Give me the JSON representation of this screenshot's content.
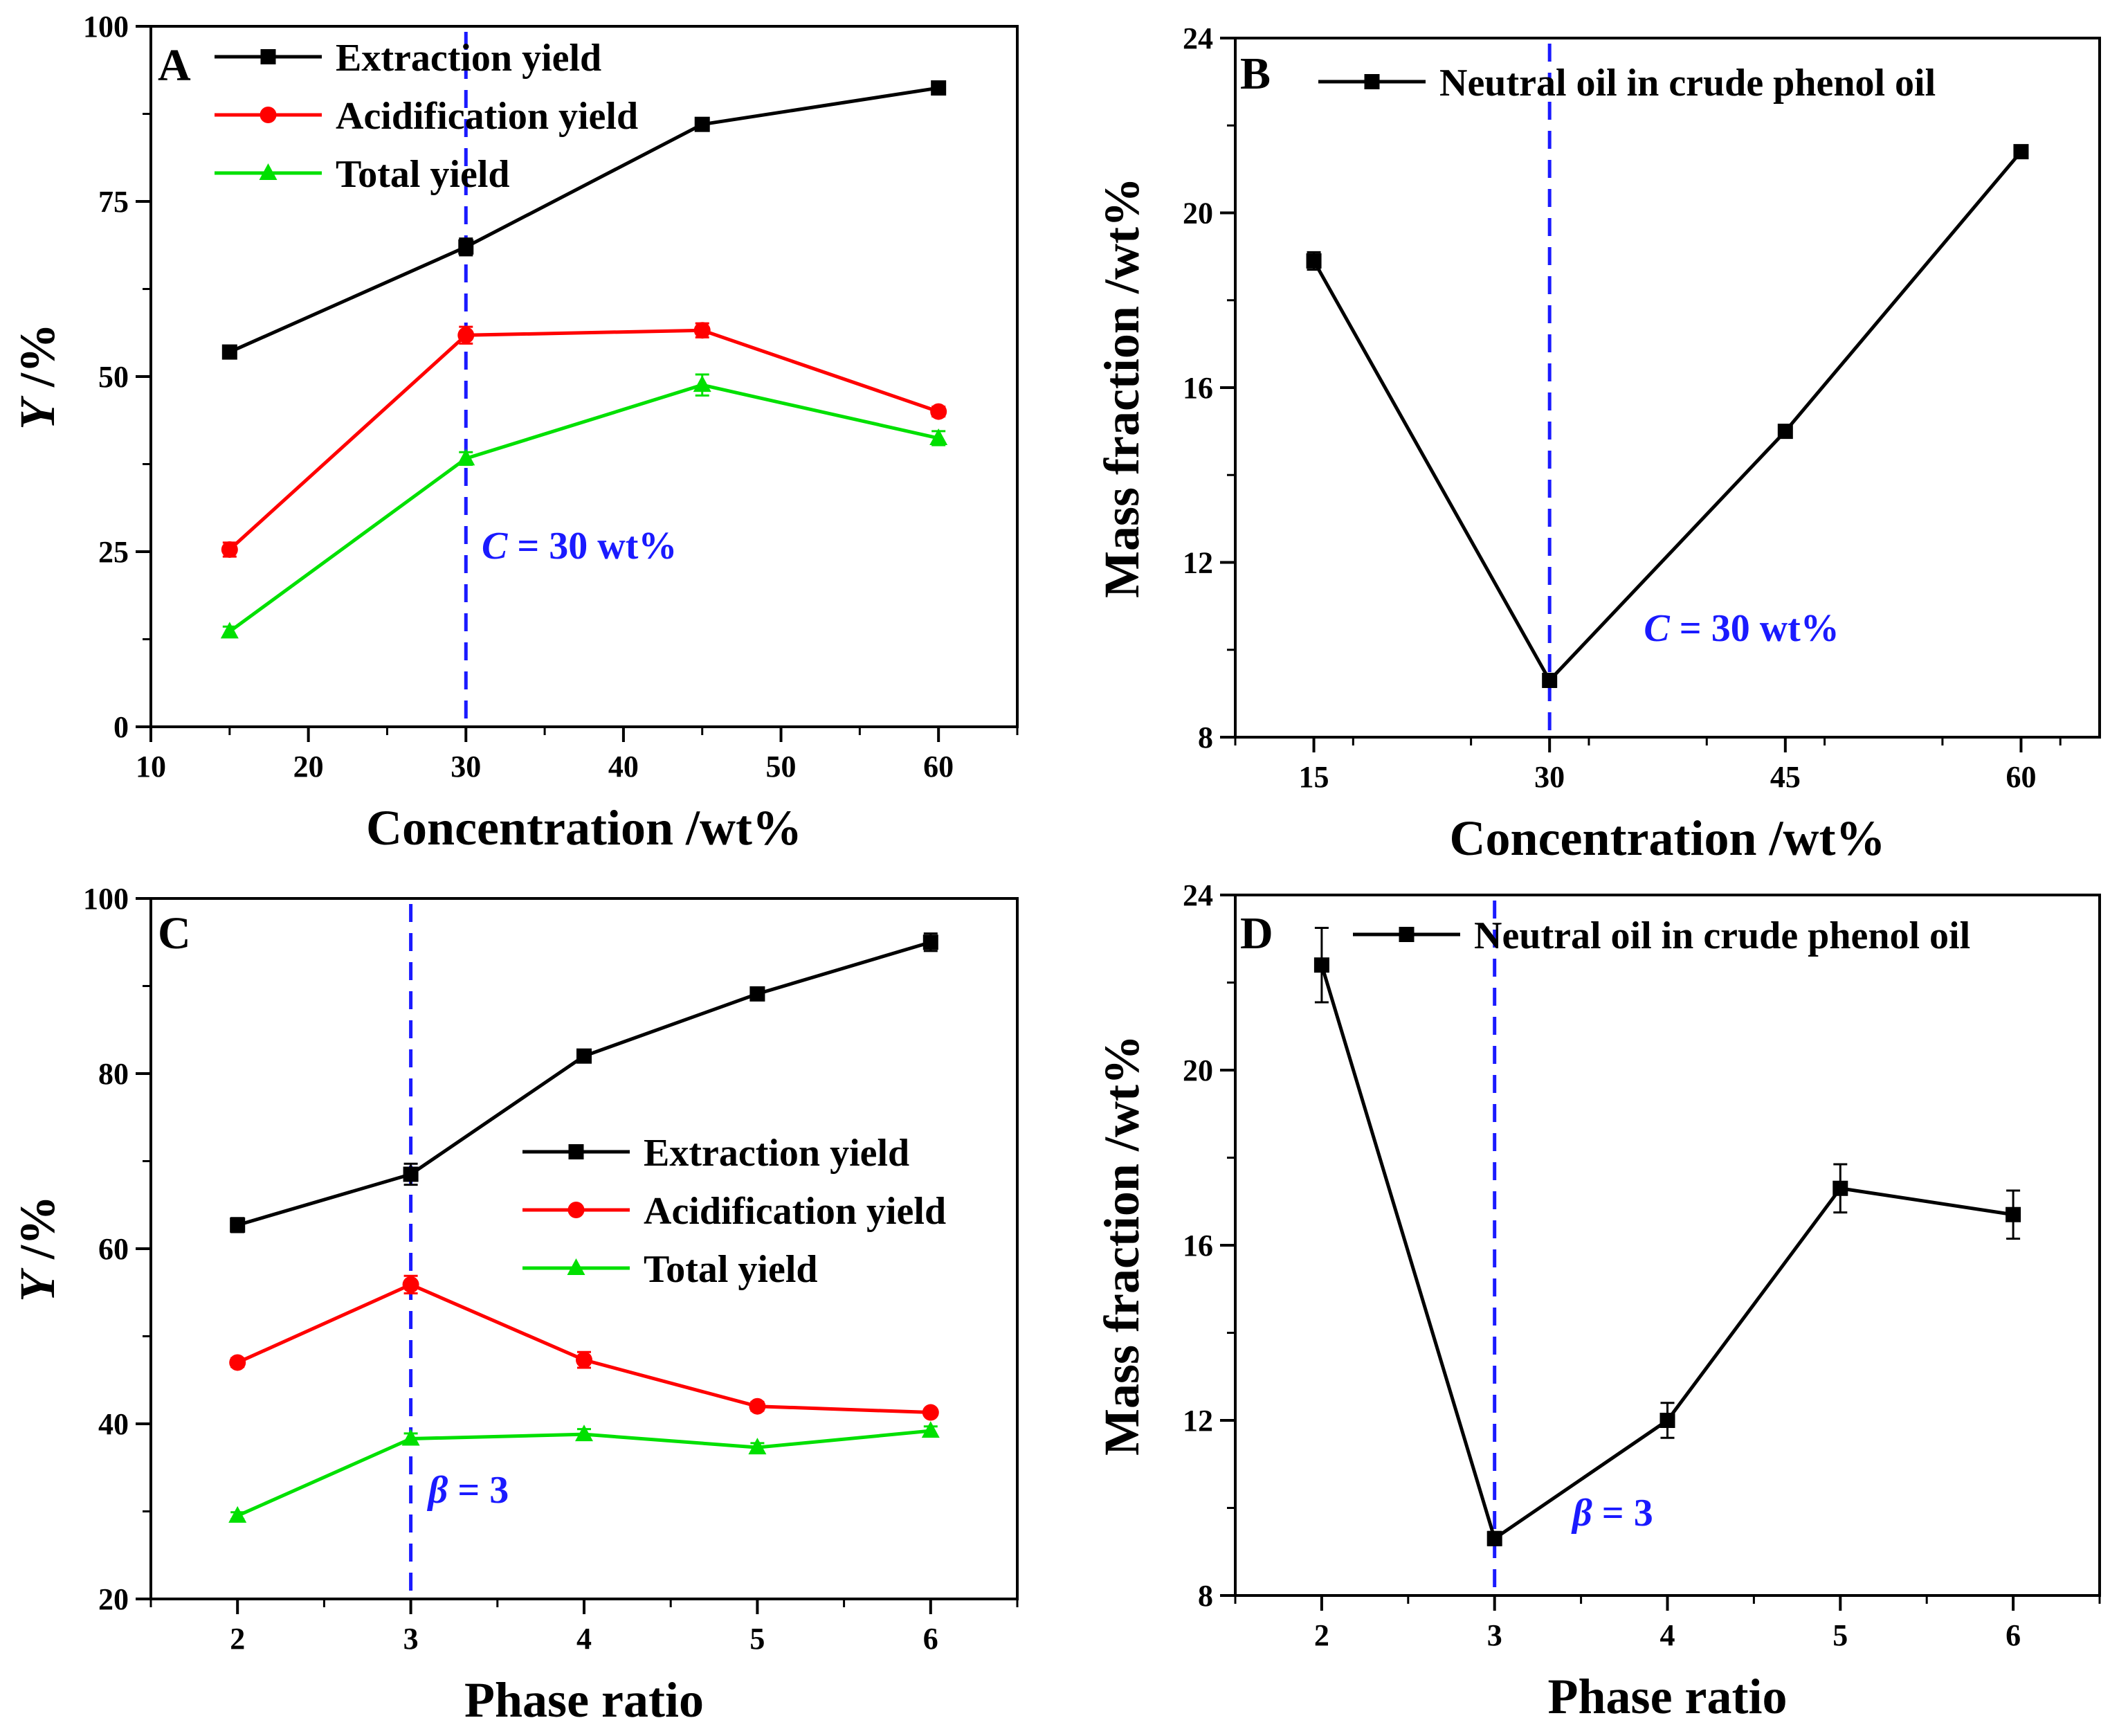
{
  "colors": {
    "extraction": "#000000",
    "acidification": "#ff0000",
    "total": "#00e000",
    "neutral": "#000000",
    "guide": "#1a1aff"
  },
  "chart_data": [
    {
      "panel": "A",
      "type": "line",
      "x": [
        15,
        30,
        45,
        60
      ],
      "xlim": [
        10,
        65
      ],
      "ylim": [
        0,
        100
      ],
      "xticks": [
        "10",
        "20",
        "30",
        "40",
        "50",
        "60"
      ],
      "yticks": [
        "0",
        "25",
        "50",
        "75",
        "100"
      ],
      "xlabel": "Concentration /wt%",
      "ylabel": "Y /%",
      "legend_position": "top-left",
      "series": [
        {
          "name": "Extraction yield",
          "values": [
            53.5,
            68.5,
            86,
            91.2
          ],
          "errors": [
            0.5,
            1.2,
            0.6,
            0.6
          ],
          "color": "#000000",
          "marker": "square"
        },
        {
          "name": "Acidification yield",
          "values": [
            25.3,
            55.9,
            56.6,
            45
          ],
          "errors": [
            1.0,
            1.2,
            1.0,
            0.7
          ],
          "color": "#ff0000",
          "marker": "circle"
        },
        {
          "name": "Total yield",
          "values": [
            13.6,
            38.3,
            48.8,
            41.2
          ],
          "errors": [
            0.7,
            0.9,
            1.5,
            1.0
          ],
          "color": "#00e000",
          "marker": "triangle"
        }
      ],
      "guide_line_x": 30,
      "annotation": {
        "italic": "C",
        "rest": " = 30 wt%",
        "x": 31,
        "y": 24
      }
    },
    {
      "panel": "B",
      "type": "line",
      "x": [
        15,
        30,
        45,
        60
      ],
      "xlim": [
        10,
        65
      ],
      "ylim": [
        8,
        24
      ],
      "xticks": [
        "15",
        "30",
        "45",
        "60"
      ],
      "yticks": [
        "8",
        "12",
        "16",
        "20",
        "24"
      ],
      "xlabel": "Concentration /wt%",
      "ylabel": "Mass fraction /wt%",
      "legend_position": "top",
      "series": [
        {
          "name": "Neutral oil in crude phenol oil",
          "values": [
            18.9,
            9.3,
            15.0,
            21.4
          ],
          "errors": [
            0.2,
            0.15,
            0.1,
            0.1
          ],
          "color": "#000000",
          "marker": "square"
        }
      ],
      "guide_line_x": 30,
      "annotation": {
        "italic": "C",
        "rest": " = 30 wt%",
        "x": 36,
        "y": 10.2
      }
    },
    {
      "panel": "C",
      "type": "line",
      "x": [
        2,
        3,
        4,
        5,
        6
      ],
      "xlim": [
        1.5,
        6.5
      ],
      "ylim": [
        20,
        100
      ],
      "xticks": [
        "2",
        "3",
        "4",
        "5",
        "6"
      ],
      "yticks": [
        "20",
        "40",
        "60",
        "80",
        "100"
      ],
      "xlabel": "Phase ratio",
      "ylabel": "Y /%",
      "legend_position": "center-right",
      "series": [
        {
          "name": "Extraction yield",
          "values": [
            62.7,
            68.5,
            82,
            89.1,
            95
          ],
          "errors": [
            0.8,
            1.2,
            0.5,
            0.7,
            1.0
          ],
          "color": "#000000",
          "marker": "square"
        },
        {
          "name": "Acidification yield",
          "values": [
            47,
            55.9,
            47.3,
            42,
            41.3
          ],
          "errors": [
            0.5,
            1.0,
            0.9,
            0.5,
            0.4
          ],
          "color": "#ff0000",
          "marker": "circle"
        },
        {
          "name": "Total yield",
          "values": [
            29.5,
            38.3,
            38.8,
            37.3,
            39.2
          ],
          "errors": [
            0.4,
            0.6,
            0.6,
            0.5,
            0.5
          ],
          "color": "#00e000",
          "marker": "triangle"
        }
      ],
      "guide_line_x": 3,
      "annotation": {
        "italic": "β",
        "rest": " = 3",
        "x": 3.1,
        "y": 31
      }
    },
    {
      "panel": "D",
      "type": "line",
      "x": [
        2,
        3,
        4,
        5,
        6
      ],
      "xlim": [
        1.5,
        6.5
      ],
      "ylim": [
        8,
        24
      ],
      "xticks": [
        "2",
        "3",
        "4",
        "5",
        "6"
      ],
      "yticks": [
        "8",
        "12",
        "16",
        "20",
        "24"
      ],
      "xlabel": "Phase ratio",
      "ylabel": "Mass fraction /wt%",
      "legend_position": "top",
      "series": [
        {
          "name": "Neutral oil in crude phenol oil",
          "values": [
            22.4,
            9.3,
            12.0,
            17.3,
            16.7
          ],
          "errors": [
            0.85,
            0.15,
            0.4,
            0.55,
            0.55
          ],
          "color": "#000000",
          "marker": "square"
        }
      ],
      "guide_line_x": 3,
      "annotation": {
        "italic": "β",
        "rest": " = 3",
        "x": 3.45,
        "y": 9.6
      }
    }
  ]
}
